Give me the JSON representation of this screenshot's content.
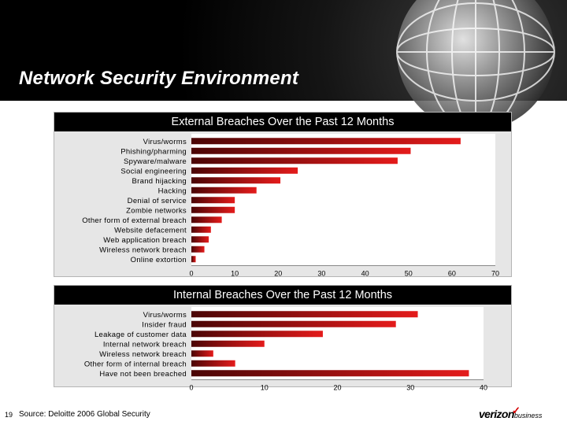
{
  "slide": {
    "title": "Network Security Environment",
    "page_number": "19",
    "source": "Source: Deloitte 2006 Global Security",
    "logo": {
      "main": "verizon",
      "sub": "business"
    }
  },
  "colors": {
    "bar_light": "#e41b1b",
    "bar_dark": "#4a0505",
    "panel_bg": "#e6e6e6",
    "title_bg": "#000000"
  },
  "chart_data": [
    {
      "type": "bar",
      "orientation": "horizontal",
      "title": "External Breaches Over the Past 12 Months",
      "categories": [
        "Virus/worms",
        "Phishing/pharming",
        "Spyware/malware",
        "Social engineering",
        "Brand hijacking",
        "Hacking",
        "Denial of service",
        "Zombie networks",
        "Other form of external breach",
        "Website defacement",
        "Web application breach",
        "Wireless network breach",
        "Online extortion"
      ],
      "values": [
        62,
        50.5,
        47.5,
        24.5,
        20.5,
        15,
        10,
        10,
        7,
        4.5,
        4,
        3,
        1
      ],
      "xlim": [
        0,
        70
      ],
      "ticks": [
        "0",
        "10",
        "20",
        "30",
        "40",
        "50",
        "60",
        "70"
      ],
      "grid": false,
      "legend": "none"
    },
    {
      "type": "bar",
      "orientation": "horizontal",
      "title": "Internal Breaches Over the Past 12 Months",
      "categories": [
        "Virus/worms",
        "Insider fraud",
        "Leakage of customer data",
        "Internal network breach",
        "Wireless network breach",
        "Other form of internal breach",
        "Have not been breached"
      ],
      "values": [
        31,
        28,
        18,
        10,
        3,
        6,
        38
      ],
      "xlim": [
        0,
        40
      ],
      "ticks": [
        "0",
        "10",
        "20",
        "30",
        "40"
      ],
      "grid": false,
      "legend": "none"
    }
  ]
}
